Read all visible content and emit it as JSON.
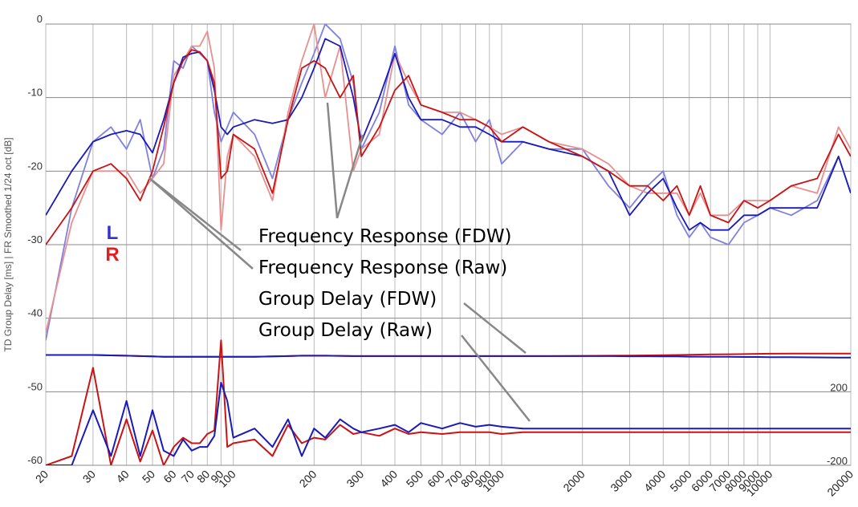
{
  "chart_data": {
    "type": "line",
    "y_label": "TD Group Delay [ms] | FR Smoothed 1/24 oct [dB]",
    "xlog": true,
    "grid": true,
    "xlim": [
      20,
      20000
    ],
    "ylim": [
      -60,
      0
    ],
    "y2lim": [
      -200,
      2200
    ],
    "xticks": [
      20,
      30,
      40,
      50,
      60,
      70,
      80,
      90,
      100,
      200,
      300,
      400,
      500,
      600,
      700,
      800,
      900,
      1000,
      2000,
      3000,
      4000,
      5000,
      6000,
      7000,
      8000,
      9000,
      10000,
      20000
    ],
    "yticks": [
      0,
      -10,
      -20,
      -30,
      -40,
      -50,
      -60
    ],
    "y2ticks": [
      200,
      -200
    ],
    "legend": [
      {
        "label": "L",
        "color": "#3333cc"
      },
      {
        "label": "R",
        "color": "#e02020"
      }
    ],
    "annotations": [
      "Frequency Response (FDW)",
      "Frequency Response (Raw)",
      "Group Delay (FDW)",
      "Group Delay (Raw)"
    ],
    "x": [
      20,
      25,
      30,
      35,
      40,
      45,
      50,
      55,
      60,
      65,
      70,
      75,
      80,
      85,
      90,
      95,
      100,
      120,
      140,
      160,
      180,
      200,
      220,
      250,
      280,
      300,
      350,
      400,
      450,
      500,
      600,
      700,
      800,
      900,
      1000,
      1200,
      1500,
      2000,
      2500,
      3000,
      3500,
      4000,
      4500,
      5000,
      5500,
      6000,
      7000,
      8000,
      9000,
      10000,
      12000,
      15000,
      18000,
      20000
    ],
    "series": [
      {
        "color": "#8080e0",
        "values": [
          -43,
          -25,
          -16,
          -14,
          -17,
          -13,
          -21,
          -17,
          -5,
          -6,
          -3,
          -4,
          -5,
          -12,
          -16,
          -14,
          -12,
          -15,
          -21,
          -13,
          -8,
          -4,
          0,
          -2,
          -8,
          -17,
          -12,
          -3,
          -11,
          -13,
          -15,
          -12,
          -16,
          -13,
          -19,
          -16,
          -17,
          -17,
          -22,
          -25,
          -22,
          -20,
          -26,
          -29,
          -27,
          -29,
          -30,
          -27,
          -26,
          -25,
          -26,
          -24,
          -18,
          -23
        ]
      },
      {
        "color": "#e89090",
        "values": [
          -42,
          -27,
          -20,
          -20,
          -20,
          -23,
          -21,
          -19,
          -7,
          -5,
          -3,
          -3,
          -1,
          -6,
          -28,
          -18,
          -15,
          -18,
          -24,
          -12,
          -5,
          0,
          -10,
          -3,
          -20,
          -17,
          -15,
          -4,
          -8,
          -11,
          -12,
          -12,
          -13,
          -14,
          -15,
          -14,
          -16,
          -17,
          -19,
          -22,
          -23,
          -23,
          -23,
          -26,
          -23,
          -26,
          -26,
          -24,
          -24,
          -24,
          -22,
          -23,
          -14,
          -17
        ]
      },
      {
        "color": "#1a1ab8",
        "values": [
          -26,
          -20,
          -16,
          -15,
          -14.5,
          -15,
          -17.5,
          -13,
          -8,
          -4.5,
          -4,
          -3.8,
          -5,
          -9,
          -14,
          -15,
          -14,
          -13,
          -13.5,
          -13,
          -10,
          -6,
          -2,
          -3,
          -10,
          -16,
          -10,
          -4,
          -10,
          -13,
          -13,
          -14,
          -14,
          -15,
          -16,
          -16,
          -17,
          -18,
          -20,
          -26,
          -23,
          -21,
          -25,
          -28,
          -27,
          -28,
          -28,
          -26,
          -26,
          -25,
          -25,
          -25,
          -18,
          -23
        ]
      },
      {
        "color": "#c81414",
        "values": [
          -30,
          -25,
          -20,
          -19,
          -21,
          -24,
          -20,
          -14,
          -8,
          -5,
          -3.5,
          -3.8,
          -5,
          -8,
          -21,
          -20,
          -15,
          -17,
          -23,
          -13,
          -6,
          -5,
          -6,
          -10,
          -7,
          -18,
          -14,
          -9,
          -7,
          -11,
          -12,
          -13,
          -13,
          -14,
          -16,
          -14,
          -16,
          -18,
          -20,
          -22,
          -22,
          -24,
          -22,
          -26,
          -22,
          -26,
          -27,
          -24,
          -25,
          -24,
          -22,
          -21,
          -15,
          -18
        ]
      },
      {
        "color": "#c81414",
        "axis": "y2",
        "values": [
          400,
          400,
          400,
          398,
          396,
          394,
          392,
          390,
          390,
          390,
          390,
          390,
          390,
          390,
          390,
          390,
          390,
          390,
          392,
          394,
          396,
          396,
          396,
          395,
          394,
          394,
          394,
          394,
          394,
          394,
          394,
          394,
          394,
          394,
          394,
          394,
          394,
          395,
          396,
          397,
          398,
          399,
          400,
          401,
          402,
          403,
          404,
          405,
          406,
          407,
          408,
          408,
          408,
          408
        ]
      },
      {
        "color": "#1a1ab8",
        "axis": "y2",
        "values": [
          400,
          400,
          400,
          398,
          396,
          394,
          392,
          390,
          390,
          390,
          390,
          390,
          390,
          390,
          390,
          390,
          390,
          390,
          392,
          394,
          396,
          396,
          396,
          395,
          394,
          394,
          394,
          394,
          394,
          394,
          394,
          394,
          394,
          394,
          394,
          394,
          394,
          394,
          394,
          393,
          393,
          392,
          392,
          391,
          391,
          390,
          390,
          389,
          389,
          388,
          388,
          387,
          386,
          386
        ]
      },
      {
        "color": "#c81414",
        "axis": "y2",
        "values": [
          -200,
          -150,
          330,
          -200,
          50,
          -180,
          -10,
          -200,
          -100,
          -50,
          -80,
          -80,
          -30,
          -10,
          480,
          -100,
          -80,
          -60,
          -150,
          20,
          -80,
          -50,
          -60,
          20,
          -30,
          -20,
          -40,
          0,
          -30,
          -20,
          -30,
          -20,
          -20,
          -20,
          -30,
          -20,
          -20,
          -20,
          -20,
          -20,
          -20,
          -20,
          -20,
          -20,
          -20,
          -20,
          -20,
          -20,
          -20,
          -20,
          -20,
          -20,
          -20,
          -20
        ]
      },
      {
        "color": "#1a1ab8",
        "axis": "y2",
        "values": [
          -200,
          -200,
          100,
          -150,
          150,
          -150,
          100,
          -120,
          -150,
          -60,
          -120,
          -100,
          -100,
          -40,
          250,
          150,
          -50,
          0,
          -100,
          50,
          -150,
          0,
          -50,
          50,
          0,
          -20,
          0,
          20,
          -20,
          30,
          0,
          30,
          10,
          20,
          10,
          0,
          0,
          0,
          0,
          0,
          0,
          0,
          0,
          0,
          0,
          0,
          0,
          0,
          0,
          0,
          0,
          0,
          0,
          0
        ]
      }
    ]
  }
}
